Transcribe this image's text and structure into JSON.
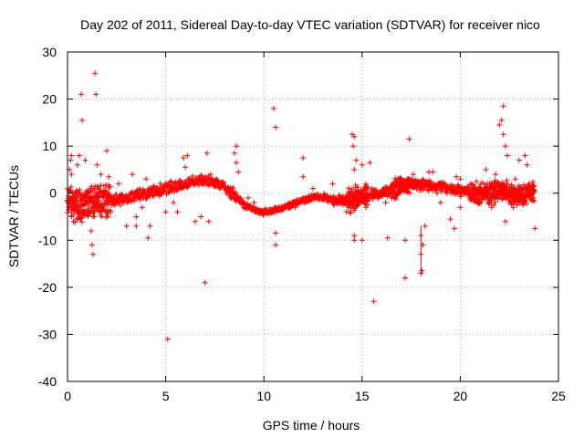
{
  "chart_data": {
    "type": "scatter",
    "title": "Day 202 of 2011, Sidereal Day-to-day VTEC variation (SDTVAR) for receiver nico",
    "xlabel": "GPS time / hours",
    "ylabel": "SDTVAR / TECUs",
    "xlim": [
      0,
      25
    ],
    "ylim": [
      -40,
      30
    ],
    "xticks": [
      0,
      5,
      10,
      15,
      20,
      25
    ],
    "yticks": [
      -40,
      -30,
      -20,
      -10,
      0,
      10,
      20,
      30
    ],
    "grid": true,
    "marker": "plus",
    "color": "#ff0000",
    "series": [
      {
        "name": "SDTVAR",
        "baseline": [
          [
            0.0,
            -1.5
          ],
          [
            0.3,
            -2.5
          ],
          [
            0.6,
            -3.0
          ],
          [
            1.0,
            -2.0
          ],
          [
            1.5,
            -1.5
          ],
          [
            2.0,
            -1.8
          ],
          [
            2.5,
            -1.5
          ],
          [
            3.0,
            -1.0
          ],
          [
            3.5,
            -0.5
          ],
          [
            4.0,
            0.0
          ],
          [
            4.5,
            0.5
          ],
          [
            5.0,
            1.0
          ],
          [
            5.5,
            1.5
          ],
          [
            6.0,
            2.0
          ],
          [
            6.5,
            2.5
          ],
          [
            7.0,
            2.8
          ],
          [
            7.5,
            2.5
          ],
          [
            8.0,
            1.5
          ],
          [
            8.5,
            -0.5
          ],
          [
            9.0,
            -2.5
          ],
          [
            9.5,
            -3.5
          ],
          [
            10.0,
            -4.0
          ],
          [
            10.5,
            -3.8
          ],
          [
            11.0,
            -3.0
          ],
          [
            11.5,
            -2.2
          ],
          [
            12.0,
            -1.5
          ],
          [
            12.5,
            -1.0
          ],
          [
            13.0,
            -0.8
          ],
          [
            13.5,
            -1.5
          ],
          [
            14.0,
            -1.5
          ],
          [
            14.5,
            -1.5
          ],
          [
            15.0,
            -0.5
          ],
          [
            15.5,
            -0.5
          ],
          [
            16.0,
            0.0
          ],
          [
            16.5,
            0.5
          ],
          [
            17.0,
            1.5
          ],
          [
            17.5,
            2.0
          ],
          [
            18.0,
            1.8
          ],
          [
            18.5,
            1.5
          ],
          [
            19.0,
            1.2
          ],
          [
            19.5,
            1.0
          ],
          [
            20.0,
            0.5
          ],
          [
            20.5,
            0.2
          ],
          [
            21.0,
            0.0
          ],
          [
            21.5,
            0.0
          ],
          [
            22.0,
            0.5
          ],
          [
            22.5,
            0.0
          ],
          [
            23.0,
            -0.5
          ],
          [
            23.5,
            0.0
          ],
          [
            23.8,
            0.5
          ]
        ],
        "outliers": [
          [
            0.1,
            5
          ],
          [
            0.15,
            7
          ],
          [
            0.2,
            8
          ],
          [
            0.2,
            4
          ],
          [
            0.2,
            -5
          ],
          [
            0.3,
            -6
          ],
          [
            0.5,
            6
          ],
          [
            0.6,
            8
          ],
          [
            0.7,
            21
          ],
          [
            0.75,
            15.5
          ],
          [
            0.9,
            7
          ],
          [
            1.0,
            -4
          ],
          [
            1.2,
            -8
          ],
          [
            1.25,
            -11
          ],
          [
            1.3,
            -13
          ],
          [
            1.4,
            25.5
          ],
          [
            1.45,
            21
          ],
          [
            1.5,
            6
          ],
          [
            1.7,
            4
          ],
          [
            2.0,
            9
          ],
          [
            2.1,
            3.5
          ],
          [
            2.2,
            -4
          ],
          [
            2.6,
            2
          ],
          [
            3.0,
            -7
          ],
          [
            3.3,
            4
          ],
          [
            3.5,
            -5
          ],
          [
            3.5,
            -7
          ],
          [
            3.8,
            -3
          ],
          [
            4.1,
            -9.5
          ],
          [
            4.2,
            -7
          ],
          [
            4.0,
            3
          ],
          [
            5.0,
            -4
          ],
          [
            5.1,
            -31
          ],
          [
            5.3,
            1
          ],
          [
            5.4,
            -2
          ],
          [
            5.6,
            -4
          ],
          [
            5.9,
            7.5
          ],
          [
            6.0,
            5.5
          ],
          [
            6.1,
            8
          ],
          [
            6.2,
            3
          ],
          [
            6.5,
            -6
          ],
          [
            6.8,
            -5
          ],
          [
            7.0,
            -19
          ],
          [
            7.1,
            8.5
          ],
          [
            7.2,
            -6
          ],
          [
            7.5,
            1.5
          ],
          [
            8.3,
            -1
          ],
          [
            8.5,
            8.5
          ],
          [
            8.6,
            10
          ],
          [
            8.6,
            6.5
          ],
          [
            8.7,
            4.5
          ],
          [
            8.8,
            -1
          ],
          [
            9.2,
            -1
          ],
          [
            9.5,
            -2
          ],
          [
            10.5,
            18
          ],
          [
            10.6,
            14
          ],
          [
            10.6,
            -8.5
          ],
          [
            10.6,
            -11
          ],
          [
            11.0,
            -3
          ],
          [
            11.6,
            -3
          ],
          [
            12.0,
            7.5
          ],
          [
            12.0,
            3.5
          ],
          [
            12.5,
            1
          ],
          [
            13.5,
            2
          ],
          [
            14.0,
            -1
          ],
          [
            14.3,
            -3
          ],
          [
            14.5,
            -2.5
          ],
          [
            14.5,
            12.5
          ],
          [
            14.55,
            10
          ],
          [
            14.6,
            12
          ],
          [
            14.6,
            5
          ],
          [
            14.6,
            -9
          ],
          [
            14.6,
            -10
          ],
          [
            14.7,
            7
          ],
          [
            15.0,
            6
          ],
          [
            15.0,
            -10
          ],
          [
            15.2,
            -3
          ],
          [
            15.4,
            6.5
          ],
          [
            15.5,
            1
          ],
          [
            15.6,
            -23
          ],
          [
            15.7,
            -0.5
          ],
          [
            16.0,
            0
          ],
          [
            16.2,
            -2
          ],
          [
            16.3,
            -9.5
          ],
          [
            17.0,
            3
          ],
          [
            17.2,
            -18
          ],
          [
            17.2,
            -10
          ],
          [
            17.4,
            11.5
          ],
          [
            17.6,
            4
          ],
          [
            18.0,
            -17
          ],
          [
            18.05,
            -16.5
          ],
          [
            18.0,
            -13
          ],
          [
            18.1,
            -11
          ],
          [
            18.2,
            -7
          ],
          [
            18.0,
            -9
          ],
          [
            18.4,
            4.5
          ],
          [
            18.6,
            4.5
          ],
          [
            19.0,
            -2
          ],
          [
            19.5,
            -5.5
          ],
          [
            19.7,
            -7.5
          ],
          [
            19.8,
            3.5
          ],
          [
            20.0,
            -3
          ],
          [
            20.0,
            3
          ],
          [
            20.5,
            -1
          ],
          [
            21.0,
            -2
          ],
          [
            21.2,
            -1
          ],
          [
            21.3,
            5
          ],
          [
            21.5,
            -2
          ],
          [
            21.6,
            -3
          ],
          [
            21.7,
            -2.5
          ],
          [
            21.8,
            4
          ],
          [
            21.9,
            1.5
          ],
          [
            22.0,
            14.5
          ],
          [
            22.1,
            15.5
          ],
          [
            22.2,
            18.5
          ],
          [
            22.2,
            12.5
          ],
          [
            22.3,
            10
          ],
          [
            22.3,
            -6
          ],
          [
            22.4,
            8
          ],
          [
            22.5,
            -2
          ],
          [
            22.6,
            -1
          ],
          [
            22.7,
            -3
          ],
          [
            22.8,
            3
          ],
          [
            23.0,
            7
          ],
          [
            23.1,
            -1
          ],
          [
            23.2,
            -1.5
          ],
          [
            23.3,
            8
          ],
          [
            23.4,
            6
          ],
          [
            23.5,
            2
          ],
          [
            23.6,
            1
          ],
          [
            23.7,
            -1.5
          ],
          [
            23.8,
            -7.5
          ]
        ]
      }
    ]
  }
}
